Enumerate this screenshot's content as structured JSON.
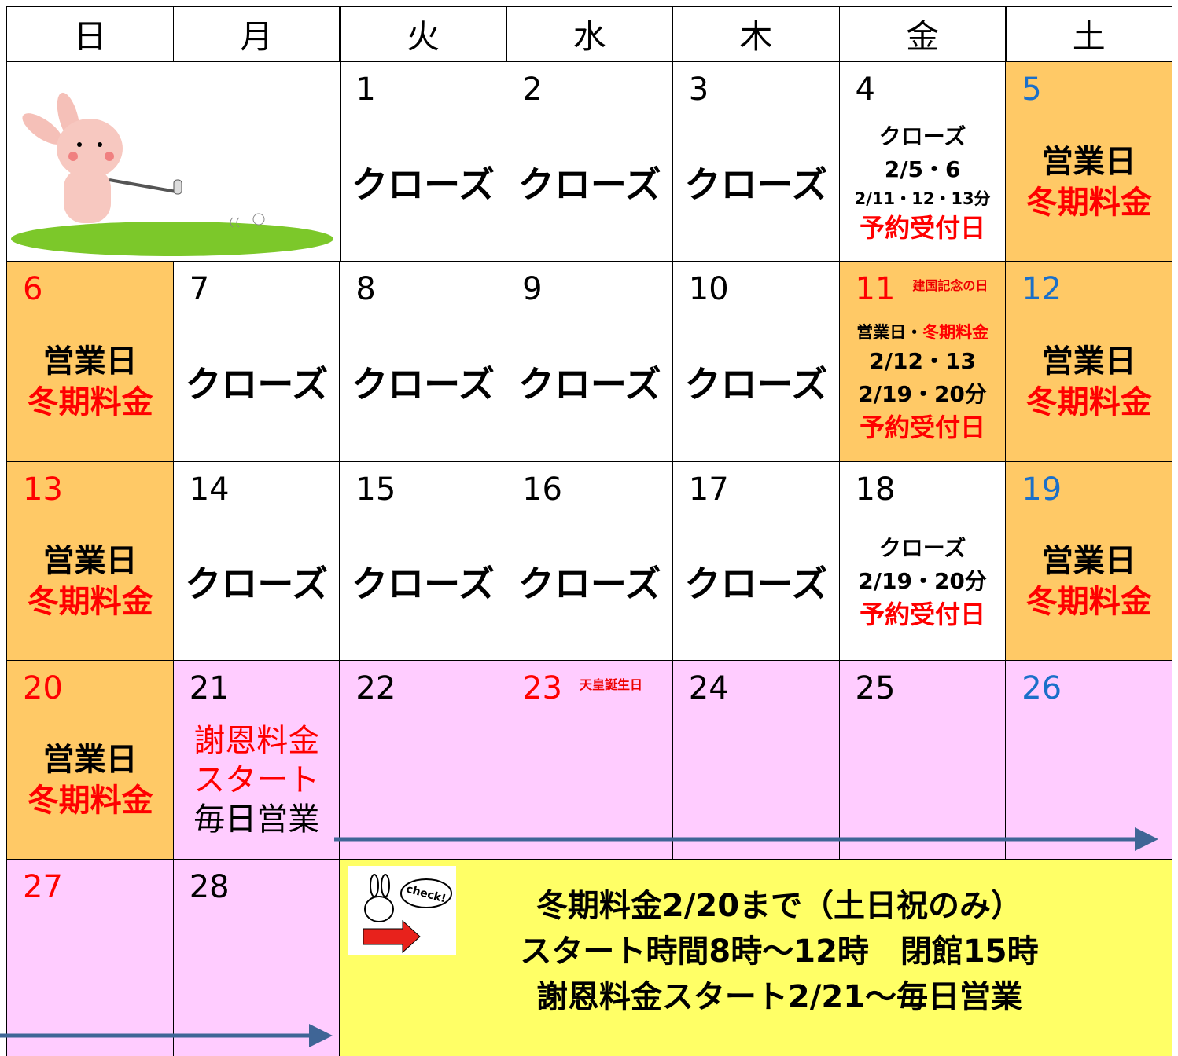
{
  "days": [
    "日",
    "月",
    "火",
    "水",
    "木",
    "金",
    "土"
  ],
  "weeks": [
    [
      {
        "date": 1,
        "lines": [
          "クローズ"
        ]
      },
      {
        "date": 2,
        "lines": [
          "クローズ"
        ]
      },
      {
        "date": 3,
        "lines": [
          "クローズ"
        ]
      },
      {
        "date": 4,
        "lines": [
          "クローズ",
          "2/5・6",
          "2/11・12・13分",
          "予約受付日"
        ]
      },
      {
        "date": 5,
        "lines": [
          "営業日",
          "冬期料金"
        ]
      }
    ],
    [
      {
        "date": 6,
        "lines": [
          "営業日",
          "冬期料金"
        ]
      },
      {
        "date": 7,
        "lines": [
          "クローズ"
        ]
      },
      {
        "date": 8,
        "lines": [
          "クローズ"
        ]
      },
      {
        "date": 9,
        "lines": [
          "クローズ"
        ]
      },
      {
        "date": 10,
        "lines": [
          "クローズ"
        ]
      },
      {
        "date": 11,
        "note": "建国記念の日",
        "lines": [
          "営業日・",
          "冬期料金",
          "2/12・13",
          "2/19・20分",
          "予約受付日"
        ]
      },
      {
        "date": 12,
        "lines": [
          "営業日",
          "冬期料金"
        ]
      }
    ],
    [
      {
        "date": 13,
        "lines": [
          "営業日",
          "冬期料金"
        ]
      },
      {
        "date": 14,
        "lines": [
          "クローズ"
        ]
      },
      {
        "date": 15,
        "lines": [
          "クローズ"
        ]
      },
      {
        "date": 16,
        "lines": [
          "クローズ"
        ]
      },
      {
        "date": 17,
        "lines": [
          "クローズ"
        ]
      },
      {
        "date": 18,
        "lines": [
          "クローズ",
          "2/19・20分",
          "予約受付日"
        ]
      },
      {
        "date": 19,
        "lines": [
          "営業日",
          "冬期料金"
        ]
      }
    ],
    [
      {
        "date": 20,
        "lines": [
          "営業日",
          "冬期料金"
        ]
      },
      {
        "date": 21,
        "lines": [
          "謝恩料金",
          "スタート",
          "毎日営業"
        ]
      },
      {
        "date": 22,
        "lines": []
      },
      {
        "date": 23,
        "note": "天皇誕生日",
        "lines": []
      },
      {
        "date": 24,
        "lines": []
      },
      {
        "date": 25,
        "lines": []
      },
      {
        "date": 26,
        "lines": []
      }
    ],
    [
      {
        "date": 27,
        "lines": []
      },
      {
        "date": 28,
        "lines": []
      }
    ]
  ],
  "notice": {
    "badge": "check!",
    "lines": [
      "冬期料金2/20まで（土日祝のみ）",
      "スタート時間8時～12時　閉館15時",
      "謝恩料金スタート2/21～毎日営業"
    ]
  }
}
